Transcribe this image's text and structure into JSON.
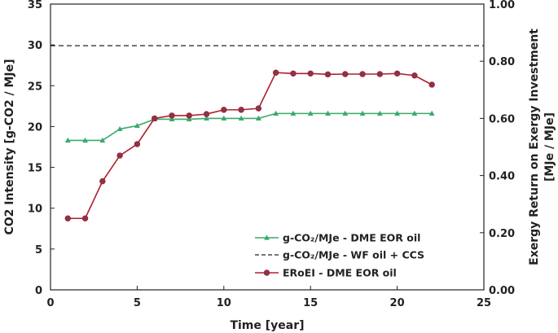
{
  "chart_data": {
    "type": "line",
    "x": [
      1,
      2,
      3,
      4,
      5,
      6,
      7,
      8,
      9,
      10,
      11,
      12,
      13,
      14,
      15,
      16,
      17,
      18,
      19,
      20,
      21,
      22
    ],
    "xlabel": "Time [year]",
    "xlim": [
      0,
      25
    ],
    "xticks": [
      0,
      5,
      10,
      15,
      20,
      25
    ],
    "ylabel_left": "CO2 Intensity [g-CO2 / MJe]",
    "ylim_left": [
      0,
      35
    ],
    "yticks_left": [
      0,
      5,
      10,
      15,
      20,
      25,
      30,
      35
    ],
    "ylabel_right_line1": "Exergy Return on Exergy Investment",
    "ylabel_right_line2": "[MJe / MJe]",
    "ylim_right": [
      0,
      1
    ],
    "yticks_right": [
      "0.00",
      "0.20",
      "0.40",
      "0.60",
      "0.80",
      "1.00"
    ],
    "grid": false,
    "legend_position": "bottom-right",
    "series": [
      {
        "name": "g-CO₂/MJe - DME EOR oil",
        "axis": "left",
        "color": "#3aaa6a",
        "marker": "triangle",
        "values": [
          18.3,
          18.3,
          18.3,
          19.7,
          20.1,
          20.9,
          20.9,
          20.9,
          21.0,
          21.0,
          21.0,
          21.0,
          21.6,
          21.6,
          21.6,
          21.6,
          21.6,
          21.6,
          21.6,
          21.6,
          21.6,
          21.6
        ]
      },
      {
        "name": "g-CO₂/MJe - WF oil + CCS",
        "axis": "left",
        "color": "#222222",
        "style": "dashed",
        "constant": 29.9
      },
      {
        "name": "ERoEI - DME EOR oil",
        "axis": "right",
        "color": "#b01e2e",
        "marker": "circle",
        "values": [
          0.25,
          0.25,
          0.38,
          0.47,
          0.51,
          0.6,
          0.61,
          0.61,
          0.615,
          0.63,
          0.63,
          0.635,
          0.76,
          0.757,
          0.757,
          0.754,
          0.755,
          0.755,
          0.755,
          0.757,
          0.75,
          0.718
        ]
      }
    ]
  }
}
